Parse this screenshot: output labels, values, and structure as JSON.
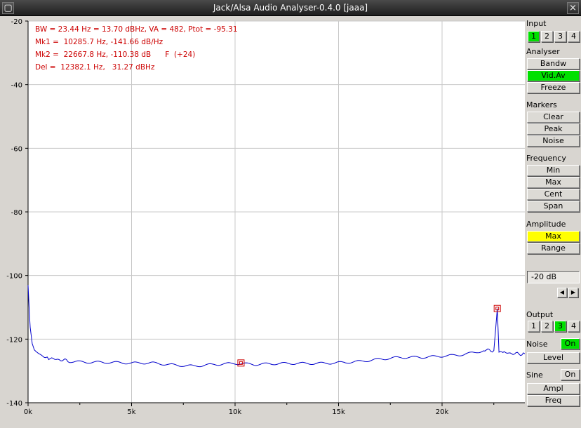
{
  "window": {
    "title": "Jack/Alsa Audio Analyser-0.4.0  [jaaa]"
  },
  "readouts": [
    "BW = 23.44 Hz = 13.70 dBHz, VA = 482, Ptot = -95.31",
    "Mk1 =  10285.7 Hz, -141.66 dB/Hz",
    "Mk2 =  22667.8 Hz, -110.38 dB      F  (+24)",
    "Del =  12382.1 Hz,   31.27 dBHz"
  ],
  "panel": {
    "input_label": "Input",
    "input_buttons": [
      "1",
      "2",
      "3",
      "4"
    ],
    "input_active": 0,
    "analyser_label": "Analyser",
    "analyser_buttons": [
      "Bandw",
      "Vid.Av",
      "Freeze"
    ],
    "markers_label": "Markers",
    "markers_buttons": [
      "Clear",
      "Peak",
      "Noise"
    ],
    "frequency_label": "Frequency",
    "frequency_buttons": [
      "Min",
      "Max",
      "Cent",
      "Span"
    ],
    "amplitude_label": "Amplitude",
    "amplitude_buttons": [
      "Max",
      "Range"
    ],
    "range_value": "-20 dB",
    "output_label": "Output",
    "output_buttons": [
      "1",
      "2",
      "3",
      "4"
    ],
    "output_active": 2,
    "noise_label": "Noise",
    "noise_toggle": "On",
    "noise_level": "Level",
    "sine_label": "Sine",
    "sine_toggle": "On",
    "sine_buttons": [
      "Ampl",
      "Freq"
    ]
  },
  "colors": {
    "trace": "#0000cc",
    "readout": "#cc0000",
    "marker": "#cc0000",
    "active": "#00e000",
    "highlight": "#ffff00"
  },
  "chart_data": {
    "type": "line",
    "ylim": [
      -140,
      -20
    ],
    "xlim": [
      0,
      24000
    ],
    "y_ticks": [
      -20,
      -40,
      -60,
      -80,
      -100,
      -120,
      -140
    ],
    "x_tick_labels": [
      {
        "value": 0,
        "label": "0k"
      },
      {
        "value": 5000,
        "label": "5k"
      },
      {
        "value": 10000,
        "label": "10k"
      },
      {
        "value": 15000,
        "label": "15k"
      },
      {
        "value": 20000,
        "label": "20k"
      }
    ],
    "grid": true,
    "series": [
      {
        "x": [
          0,
          50,
          100,
          200,
          300,
          500,
          700,
          1000,
          1500,
          2000,
          3000,
          4000,
          5000,
          6000,
          7000,
          8000,
          9000,
          10000,
          11000,
          12000,
          13000,
          14000,
          15000,
          16000,
          17000,
          18000,
          19000,
          20000,
          21000,
          22000,
          22500,
          22667,
          22750,
          23000,
          23500,
          24000
        ],
        "y": [
          -103,
          -110,
          -116,
          -121,
          -123,
          -124.5,
          -125.5,
          -126,
          -126.5,
          -126.8,
          -127.2,
          -127.5,
          -127.8,
          -127.6,
          -128,
          -128.2,
          -127.8,
          -127.7,
          -128.2,
          -127.9,
          -127.6,
          -127.4,
          -127.2,
          -127,
          -126.5,
          -126,
          -125.8,
          -125.2,
          -124.6,
          -123.5,
          -123.5,
          -110.4,
          -123.8,
          -124.2,
          -124.6,
          -124.6
        ]
      }
    ],
    "markers": [
      {
        "x": 10285.7,
        "y": -127.5
      },
      {
        "x": 22667.8,
        "y": -110.38
      }
    ]
  }
}
